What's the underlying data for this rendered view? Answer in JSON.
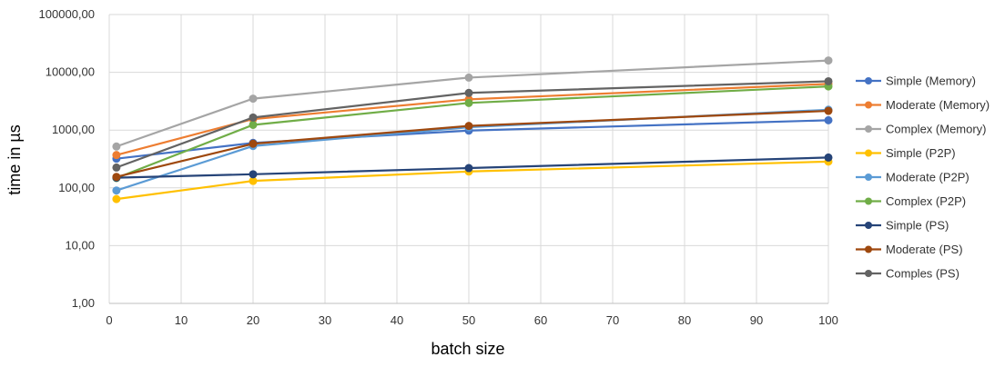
{
  "chart_data": {
    "type": "line",
    "title": "",
    "xlabel": "batch size",
    "ylabel": "time in µs",
    "x": [
      1,
      20,
      50,
      100
    ],
    "xlim": [
      0,
      100
    ],
    "xticks": [
      "0",
      "10",
      "20",
      "30",
      "40",
      "50",
      "60",
      "70",
      "80",
      "90",
      "100"
    ],
    "ylog": true,
    "ylim": [
      1,
      100000
    ],
    "yticks": [
      "1,00",
      "10,00",
      "100,00",
      "1000,00",
      "10000,00",
      "100000,00"
    ],
    "grid": true,
    "legend_position": "right",
    "series": [
      {
        "name": "Simple (Memory)",
        "color": "#4472C4",
        "values": [
          320,
          600,
          980,
          1480
        ]
      },
      {
        "name": "Moderate (Memory)",
        "color": "#ED7D31",
        "values": [
          370,
          1550,
          3400,
          6300
        ]
      },
      {
        "name": "Complex (Memory)",
        "color": "#A5A5A5",
        "values": [
          520,
          3500,
          8100,
          16000
        ]
      },
      {
        "name": "Simple (P2P)",
        "color": "#FFC000",
        "values": [
          64,
          132,
          192,
          285
        ]
      },
      {
        "name": "Moderate (P2P)",
        "color": "#5B9BD5",
        "values": [
          90,
          530,
          1120,
          2250
        ]
      },
      {
        "name": "Complex (P2P)",
        "color": "#70AD47",
        "values": [
          148,
          1230,
          2950,
          5700
        ]
      },
      {
        "name": "Simple (PS)",
        "color": "#264478",
        "values": [
          150,
          172,
          220,
          335
        ]
      },
      {
        "name": "Moderate (PS)",
        "color": "#9E480E",
        "values": [
          155,
          580,
          1180,
          2150
        ]
      },
      {
        "name": "Comples (PS)",
        "color": "#636363",
        "values": [
          225,
          1650,
          4400,
          7000
        ]
      }
    ]
  }
}
